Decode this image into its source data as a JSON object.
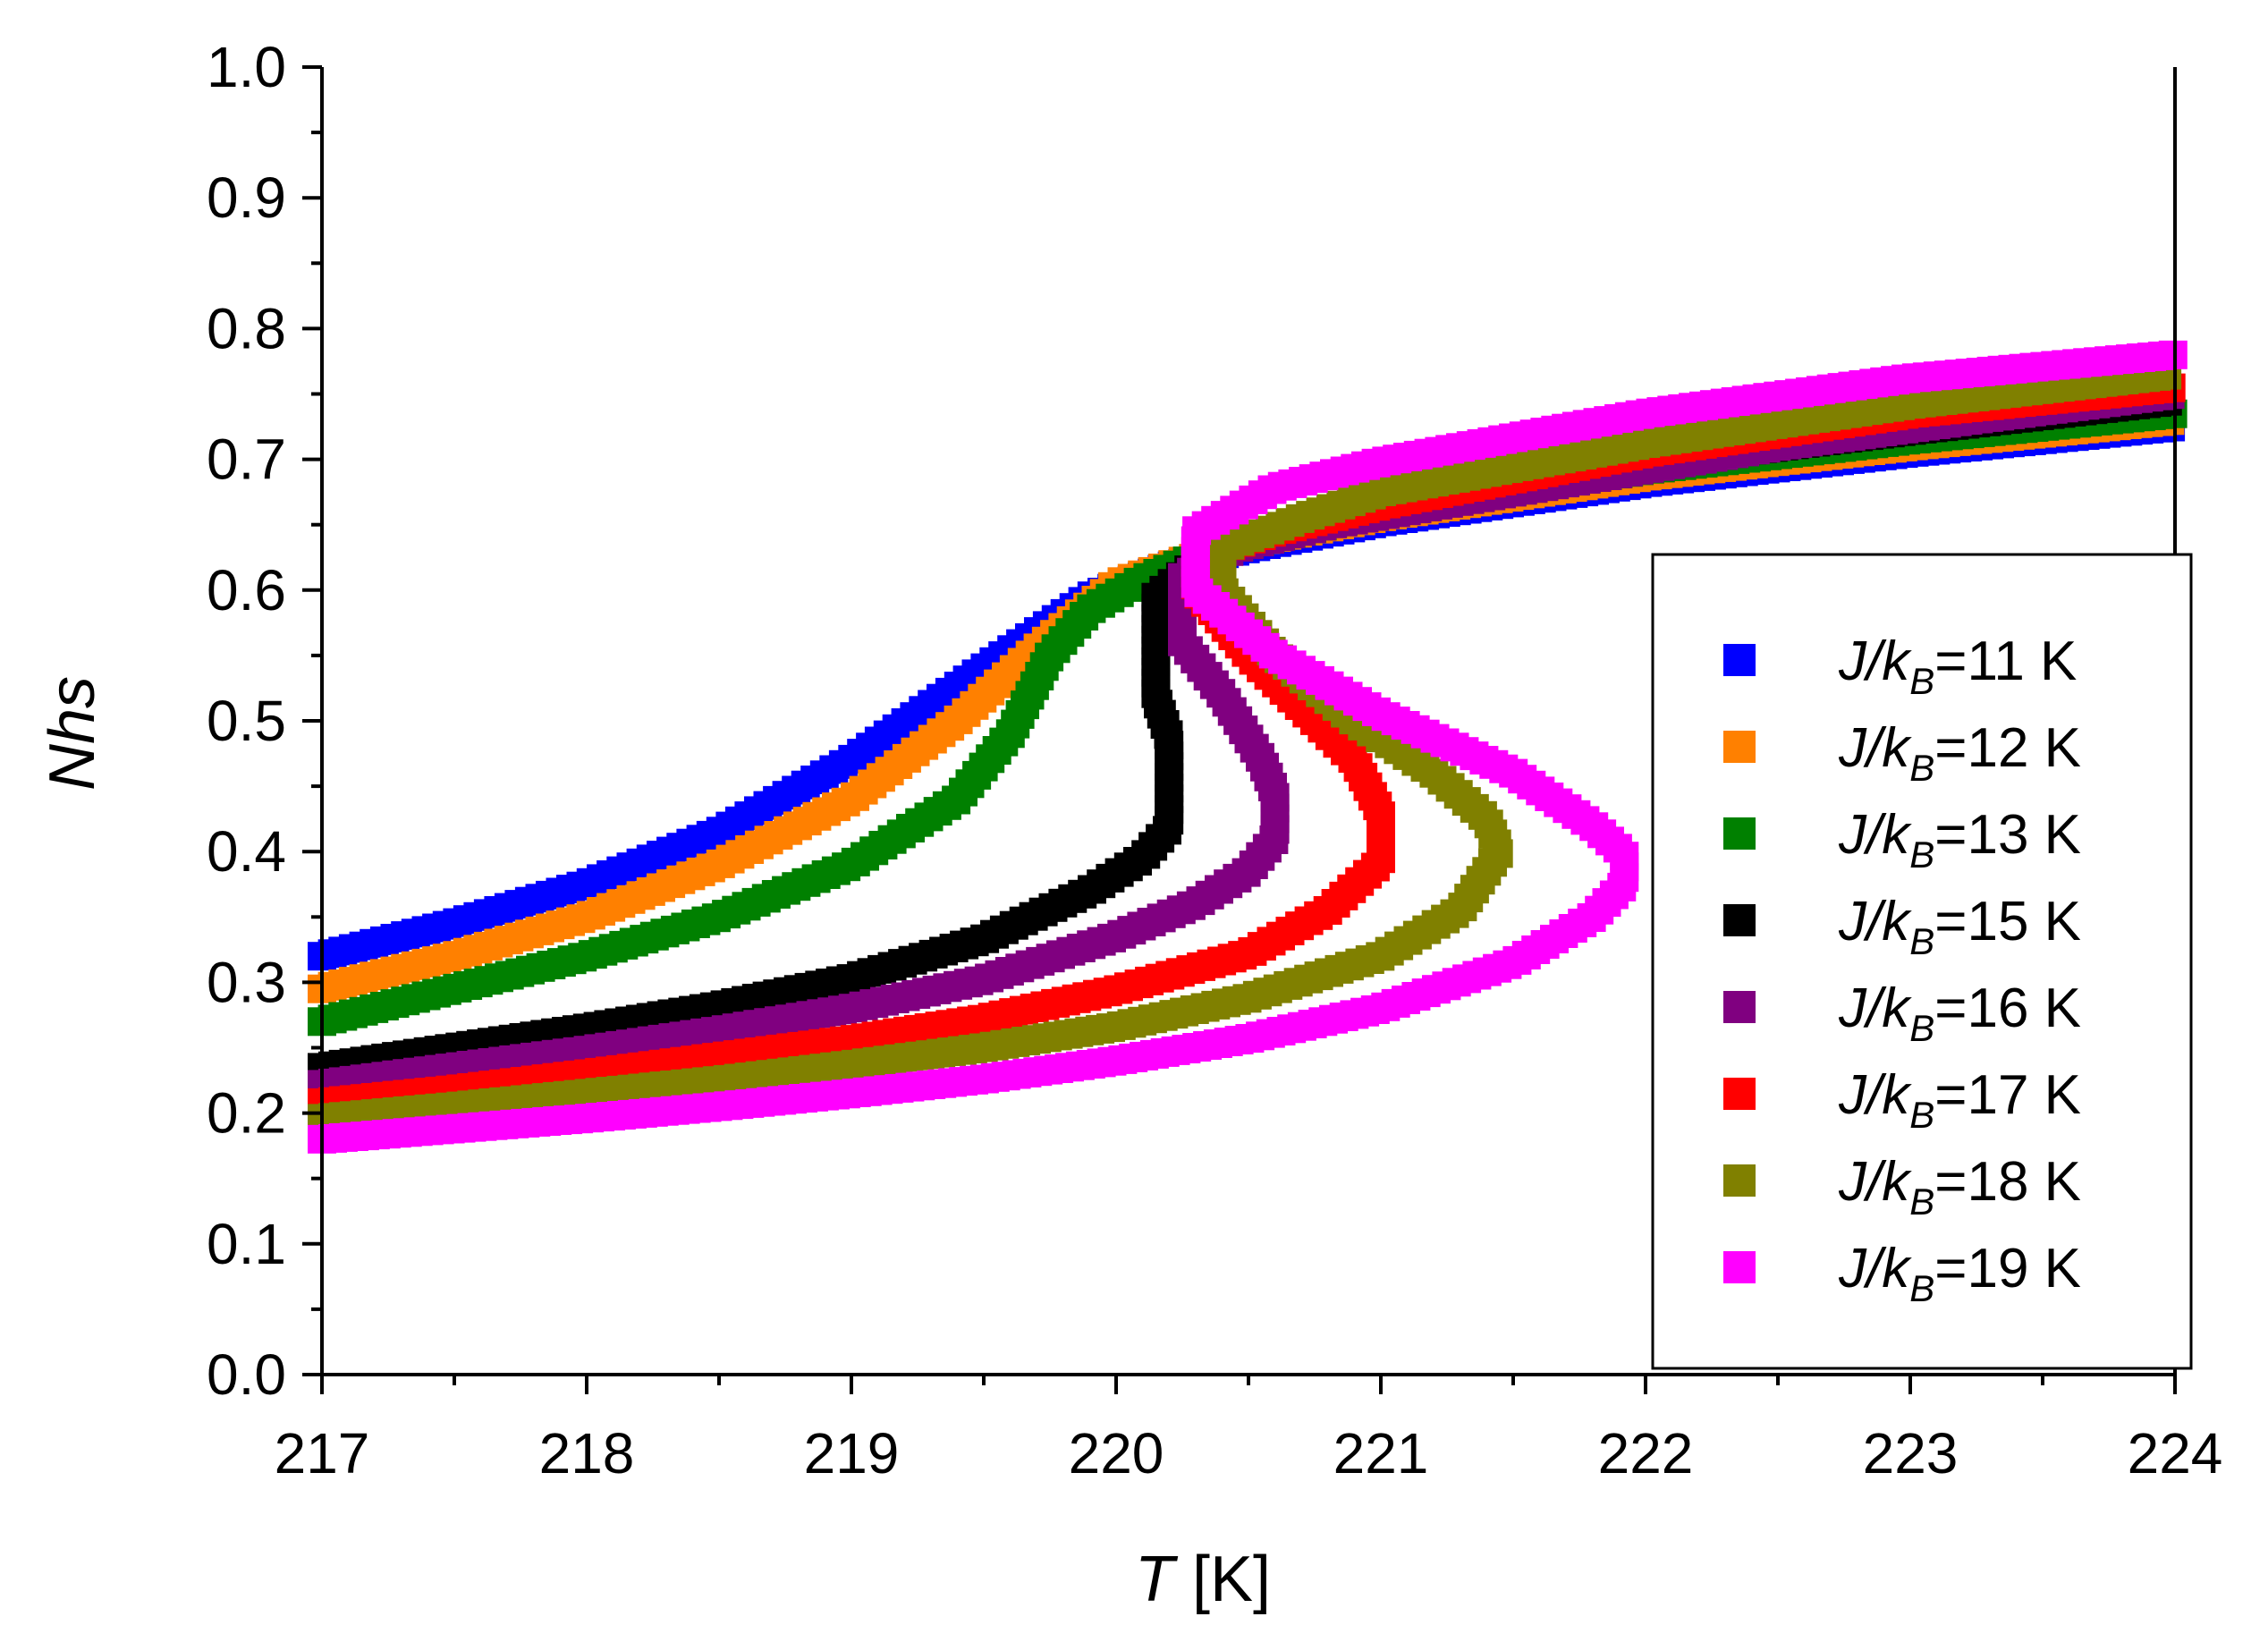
{
  "chart_data": {
    "type": "scatter",
    "title": "",
    "xlabel_italic": "T",
    "xlabel_rest": " [K]",
    "ylabel": "Nhs",
    "xlim": [
      217,
      224
    ],
    "ylim": [
      0.0,
      1.0
    ],
    "xticks": [
      "217",
      "218",
      "219",
      "220",
      "221",
      "222",
      "223",
      "224"
    ],
    "yticks": [
      "0.0",
      "0.1",
      "0.2",
      "0.3",
      "0.4",
      "0.5",
      "0.6",
      "0.7",
      "0.8",
      "0.9",
      "1.0"
    ],
    "marker": "square",
    "legend_position": "right",
    "series": [
      {
        "name": "J/kB=11 K",
        "label_pre": "J/k",
        "label_sub": "B",
        "label_post": "=11 K",
        "color": "#0000ff",
        "J": 11,
        "points": [
          [
            217.0,
            0.32
          ],
          [
            217.5,
            0.345
          ],
          [
            218.0,
            0.375
          ],
          [
            218.5,
            0.415
          ],
          [
            219.0,
            0.47
          ],
          [
            219.5,
            0.54
          ],
          [
            219.9,
            0.595
          ],
          [
            220.2,
            0.618
          ],
          [
            220.5,
            0.632
          ],
          [
            221.0,
            0.652
          ],
          [
            222.0,
            0.682
          ],
          [
            223.0,
            0.705
          ],
          [
            224.0,
            0.725
          ]
        ]
      },
      {
        "name": "J/kB=12 K",
        "label_pre": "J/k",
        "label_sub": "B",
        "label_post": "=12 K",
        "color": "#ff8000",
        "J": 12,
        "points": [
          [
            217.0,
            0.295
          ],
          [
            217.5,
            0.32
          ],
          [
            218.0,
            0.35
          ],
          [
            218.5,
            0.39
          ],
          [
            219.0,
            0.44
          ],
          [
            219.4,
            0.5
          ],
          [
            219.7,
            0.555
          ],
          [
            220.0,
            0.605
          ],
          [
            220.25,
            0.622
          ],
          [
            220.5,
            0.636
          ],
          [
            221.0,
            0.656
          ],
          [
            222.0,
            0.687
          ],
          [
            223.0,
            0.71
          ],
          [
            224.0,
            0.73
          ]
        ]
      },
      {
        "name": "J/kB=13 K",
        "label_pre": "J/k",
        "label_sub": "B",
        "label_post": "=13 K",
        "color": "#008000",
        "J": 13,
        "points": [
          [
            217.0,
            0.27
          ],
          [
            217.5,
            0.295
          ],
          [
            218.0,
            0.32
          ],
          [
            218.5,
            0.35
          ],
          [
            219.0,
            0.39
          ],
          [
            219.4,
            0.44
          ],
          [
            219.6,
            0.49
          ],
          [
            219.75,
            0.55
          ],
          [
            219.9,
            0.585
          ],
          [
            220.1,
            0.608
          ],
          [
            220.3,
            0.625
          ],
          [
            220.6,
            0.64
          ],
          [
            221.0,
            0.66
          ],
          [
            222.0,
            0.692
          ],
          [
            223.0,
            0.715
          ],
          [
            224.0,
            0.735
          ]
        ]
      },
      {
        "name": "J/kB=15 K",
        "label_pre": "J/k",
        "label_sub": "B",
        "label_post": "=15 K",
        "color": "#000000",
        "J": 15,
        "points": [
          [
            217.0,
            0.235
          ],
          [
            217.5,
            0.25
          ],
          [
            218.0,
            0.265
          ],
          [
            218.5,
            0.282
          ],
          [
            219.0,
            0.303
          ],
          [
            219.5,
            0.333
          ],
          [
            219.9,
            0.37
          ],
          [
            220.1,
            0.395
          ],
          [
            220.2,
            0.418
          ],
          [
            220.2,
            0.488
          ],
          [
            220.15,
            0.518
          ],
          [
            220.15,
            0.595
          ],
          [
            220.35,
            0.628
          ],
          [
            220.6,
            0.643
          ],
          [
            221.0,
            0.662
          ],
          [
            222.0,
            0.697
          ],
          [
            223.0,
            0.722
          ],
          [
            224.0,
            0.745
          ]
        ]
      },
      {
        "name": "J/kB=16 K",
        "label_pre": "J/k",
        "label_sub": "B",
        "label_post": "=16 K",
        "color": "#800080",
        "J": 16,
        "points": [
          [
            217.0,
            0.222
          ],
          [
            217.5,
            0.235
          ],
          [
            218.0,
            0.248
          ],
          [
            218.5,
            0.263
          ],
          [
            219.0,
            0.28
          ],
          [
            219.5,
            0.302
          ],
          [
            220.0,
            0.335
          ],
          [
            220.3,
            0.36
          ],
          [
            220.5,
            0.385
          ],
          [
            220.6,
            0.41
          ],
          [
            220.6,
            0.445
          ],
          [
            220.55,
            0.47
          ],
          [
            220.4,
            0.52
          ],
          [
            220.25,
            0.56
          ],
          [
            220.25,
            0.61
          ],
          [
            220.45,
            0.632
          ],
          [
            220.8,
            0.65
          ],
          [
            221.5,
            0.675
          ],
          [
            222.5,
            0.71
          ],
          [
            223.3,
            0.732
          ],
          [
            224.0,
            0.75
          ]
        ]
      },
      {
        "name": "J/kB=17 K",
        "label_pre": "J/k",
        "label_sub": "B",
        "label_post": "=17 K",
        "color": "#ff0000",
        "J": 17,
        "points": [
          [
            217.0,
            0.208
          ],
          [
            217.5,
            0.218
          ],
          [
            218.0,
            0.23
          ],
          [
            218.5,
            0.243
          ],
          [
            219.0,
            0.256
          ],
          [
            219.5,
            0.272
          ],
          [
            220.0,
            0.294
          ],
          [
            220.5,
            0.322
          ],
          [
            220.8,
            0.355
          ],
          [
            221.0,
            0.392
          ],
          [
            221.0,
            0.43
          ],
          [
            220.9,
            0.47
          ],
          [
            220.7,
            0.51
          ],
          [
            220.5,
            0.55
          ],
          [
            220.3,
            0.6
          ],
          [
            220.3,
            0.625
          ],
          [
            220.6,
            0.645
          ],
          [
            221.0,
            0.665
          ],
          [
            222.0,
            0.705
          ],
          [
            223.0,
            0.735
          ],
          [
            224.0,
            0.755
          ]
        ]
      },
      {
        "name": "J/kB=18 K",
        "label_pre": "J/k",
        "label_sub": "B",
        "label_post": "=18 K",
        "color": "#808000",
        "J": 18,
        "points": [
          [
            217.0,
            0.196
          ],
          [
            217.5,
            0.205
          ],
          [
            218.0,
            0.215
          ],
          [
            218.5,
            0.225
          ],
          [
            219.0,
            0.237
          ],
          [
            219.5,
            0.25
          ],
          [
            220.0,
            0.266
          ],
          [
            220.5,
            0.288
          ],
          [
            221.0,
            0.32
          ],
          [
            221.3,
            0.355
          ],
          [
            221.45,
            0.4
          ],
          [
            221.4,
            0.425
          ],
          [
            221.2,
            0.46
          ],
          [
            220.9,
            0.5
          ],
          [
            220.6,
            0.55
          ],
          [
            220.4,
            0.6
          ],
          [
            220.4,
            0.632
          ],
          [
            220.7,
            0.655
          ],
          [
            221.0,
            0.675
          ],
          [
            222.0,
            0.712
          ],
          [
            223.0,
            0.742
          ],
          [
            224.0,
            0.765
          ]
        ]
      },
      {
        "name": "J/kB=19 K",
        "label_pre": "J/k",
        "label_sub": "B",
        "label_post": "=19 K",
        "color": "#ff00ff",
        "J": 19,
        "points": [
          [
            217.0,
            0.18
          ],
          [
            217.5,
            0.188
          ],
          [
            218.0,
            0.196
          ],
          [
            218.5,
            0.205
          ],
          [
            219.0,
            0.215
          ],
          [
            219.5,
            0.226
          ],
          [
            220.0,
            0.24
          ],
          [
            220.5,
            0.257
          ],
          [
            221.0,
            0.28
          ],
          [
            221.5,
            0.315
          ],
          [
            221.8,
            0.35
          ],
          [
            221.92,
            0.375
          ],
          [
            221.92,
            0.398
          ],
          [
            221.8,
            0.42
          ],
          [
            221.5,
            0.46
          ],
          [
            221.0,
            0.505
          ],
          [
            220.6,
            0.55
          ],
          [
            220.3,
            0.6
          ],
          [
            220.3,
            0.62
          ],
          [
            220.3,
            0.645
          ],
          [
            220.6,
            0.678
          ],
          [
            221.0,
            0.698
          ],
          [
            222.0,
            0.735
          ],
          [
            223.0,
            0.762
          ],
          [
            224.0,
            0.78
          ]
        ]
      }
    ]
  }
}
